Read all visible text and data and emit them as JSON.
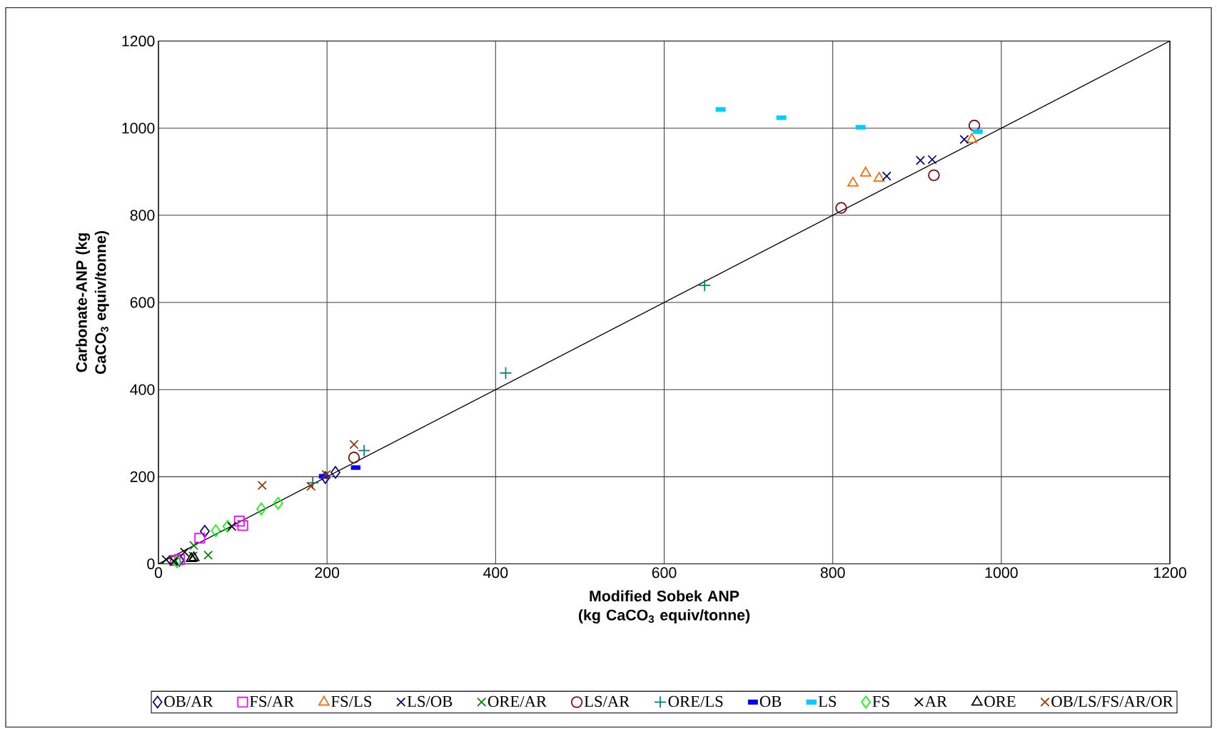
{
  "chart_data": {
    "type": "scatter",
    "xlabel": "Modified Sobek ANP (kg CaCO$_{3}$ equiv/tonne)",
    "ylabel": "Carbonate-ANP (kg CaCO$_{3}$ equiv/tonne)",
    "xlim": [
      0,
      1200
    ],
    "ylim": [
      0,
      1200
    ],
    "xticks": [
      0,
      200,
      400,
      600,
      800,
      1000,
      1200
    ],
    "yticks": [
      0,
      200,
      400,
      600,
      800,
      1000,
      1200
    ],
    "grid": true,
    "legend": "bottom",
    "series": [
      {
        "name": "OB/AR",
        "color": "#000080",
        "marker": "diamond",
        "x": [
          25,
          55,
          198,
          210
        ],
        "values": [
          8,
          75,
          198,
          210
        ]
      },
      {
        "name": "FS/AR",
        "color": "#ff00ff",
        "marker": "square",
        "x": [
          20,
          25,
          49,
          96,
          100
        ],
        "values": [
          8,
          10,
          59,
          98,
          88
        ]
      },
      {
        "name": "FS/LS",
        "color": "#ff6600",
        "marker": "triangle",
        "x": [
          824,
          839,
          855,
          965
        ],
        "values": [
          874,
          897,
          885,
          974
        ]
      },
      {
        "name": "LS/OB",
        "color": "#000080",
        "marker": "cross",
        "x": [
          864,
          904,
          918,
          956
        ],
        "values": [
          890,
          926,
          928,
          974
        ]
      },
      {
        "name": "ORE/AR",
        "color": "#008000",
        "marker": "cross",
        "x": [
          19,
          41,
          42,
          59
        ],
        "values": [
          5,
          18,
          42,
          20
        ]
      },
      {
        "name": "LS/AR",
        "color": "#800000",
        "marker": "circle",
        "x": [
          232,
          810,
          920,
          968
        ],
        "values": [
          244,
          817,
          892,
          1006
        ]
      },
      {
        "name": "ORE/LS",
        "color": "#008080",
        "marker": "plus",
        "x": [
          183,
          244,
          412,
          648
        ],
        "values": [
          186,
          260,
          438,
          639
        ]
      },
      {
        "name": "OB",
        "color": "#0000ff",
        "marker": "square",
        "x": [
          196,
          234
        ],
        "values": [
          201,
          221
        ]
      },
      {
        "name": "LS",
        "color": "#00ccff",
        "marker": "square",
        "x": [
          667,
          739,
          833,
          972
        ],
        "values": [
          1043,
          1024,
          1002,
          992
        ]
      },
      {
        "name": "FS",
        "color": "#00ff00",
        "marker": "diamond",
        "x": [
          22,
          68,
          82,
          122,
          142
        ],
        "values": [
          5,
          76,
          86,
          126,
          139
        ]
      },
      {
        "name": "AR",
        "color": "#000000",
        "marker": "cross",
        "x": [
          9,
          18,
          31,
          87
        ],
        "values": [
          10,
          6,
          27,
          86
        ]
      },
      {
        "name": "ORE",
        "color": "#000000",
        "marker": "triangle",
        "x": [
          39,
          42
        ],
        "values": [
          12,
          14
        ]
      },
      {
        "name": "OB/LS/FS/AR/OR",
        "color": "#993300",
        "marker": "cross",
        "x": [
          123,
          181,
          199,
          232
        ],
        "values": [
          180,
          178,
          205,
          274
        ]
      },
      {
        "type": "line",
        "color": "#000000",
        "marker": "none",
        "x": [
          0,
          1200
        ],
        "values": [
          0,
          1200
        ]
      }
    ]
  }
}
